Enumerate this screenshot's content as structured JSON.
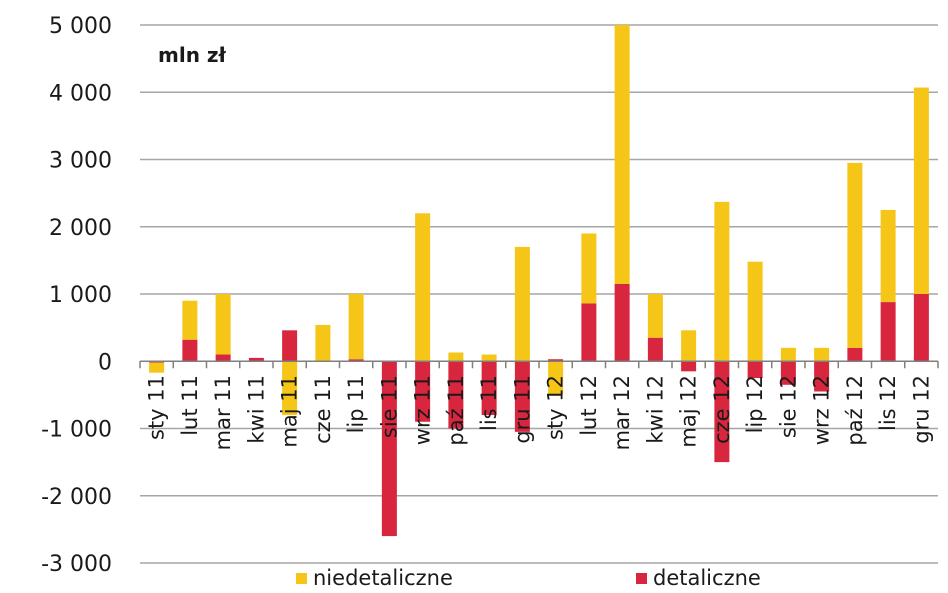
{
  "chart_data": {
    "type": "bar",
    "stacked": true,
    "unit_label": "mln zł",
    "categories": [
      "sty 11",
      "lut 11",
      "mar 11",
      "kwi 11",
      "maj 11",
      "cze 11",
      "lip 11",
      "sie 11",
      "wrz 11",
      "paź 11",
      "lis 11",
      "gru 11",
      "sty 12",
      "lut 12",
      "mar 12",
      "kwi 12",
      "maj 12",
      "cze 12",
      "lip 12",
      "sie 12",
      "wrz 12",
      "paź 12",
      "lis 12",
      "gru 12"
    ],
    "series": [
      {
        "name": "detaliczne",
        "color": "#d7263d",
        "values": [
          -20,
          320,
          100,
          50,
          460,
          0,
          30,
          -2600,
          -900,
          -1000,
          -800,
          -1050,
          30,
          860,
          1150,
          350,
          -150,
          -1500,
          -250,
          -350,
          -450,
          200,
          880,
          1000
        ]
      },
      {
        "name": "niedetaliczne",
        "color": "#f5c518",
        "values": [
          -150,
          580,
          900,
          0,
          -800,
          540,
          970,
          0,
          2200,
          130,
          100,
          1700,
          -500,
          1040,
          3850,
          650,
          460,
          2370,
          1480,
          200,
          200,
          2750,
          1370,
          3070
        ]
      }
    ],
    "ylim": [
      -3000,
      5000
    ],
    "yticks": [
      5000,
      4000,
      3000,
      2000,
      1000,
      0,
      -1000,
      -2000,
      -3000
    ],
    "ytick_labels": [
      "5 000",
      "4 000",
      "3 000",
      "2 000",
      "1 000",
      "0",
      "-1 000",
      "-2 000",
      "-3 000"
    ],
    "grid": true,
    "legend": {
      "position": "bottom",
      "items": [
        "niedetaliczne",
        "detaliczne"
      ]
    }
  }
}
